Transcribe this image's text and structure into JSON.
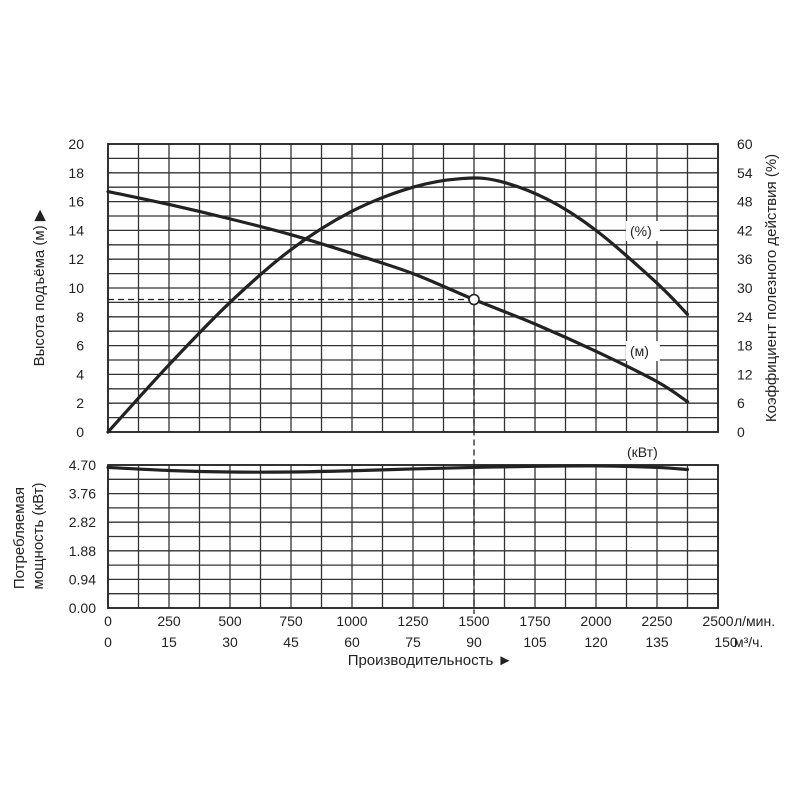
{
  "chart_data": [
    {
      "type": "line",
      "y_left_label": "Высота подъёма (м) ▶",
      "y_right_label": "Коэффициент полезного действия (%)",
      "y_left_ticks": [
        "0",
        "2",
        "4",
        "6",
        "8",
        "10",
        "12",
        "14",
        "16",
        "18",
        "20"
      ],
      "y_right_ticks": [
        "0",
        "6",
        "12",
        "18",
        "24",
        "30",
        "36",
        "42",
        "48",
        "54",
        "60"
      ],
      "y_left_lim": [
        0,
        20
      ],
      "y_right_lim": [
        0,
        60
      ],
      "series": [
        {
          "name": "(м)",
          "axis": "left",
          "x": [
            0,
            250,
            500,
            750,
            1000,
            1250,
            1500,
            1750,
            2000,
            2250,
            2375
          ],
          "y": [
            16.7,
            15.8,
            14.8,
            13.7,
            12.4,
            11.0,
            9.2,
            7.5,
            5.6,
            3.5,
            2.1
          ]
        },
        {
          "name": "(%)",
          "axis": "right",
          "x": [
            0,
            250,
            500,
            750,
            1000,
            1250,
            1450,
            1600,
            1800,
            2000,
            2250,
            2375
          ],
          "y": [
            0,
            14,
            27,
            38,
            46,
            51,
            52.8,
            52.3,
            48.5,
            42,
            31,
            24.5
          ]
        }
      ],
      "operating_point": {
        "x": 1500,
        "y": 9.2
      }
    },
    {
      "type": "line",
      "y_label": "Потребляемая мощность (кВт)",
      "y_ticks": [
        "0.00",
        "0.94",
        "1.88",
        "2.82",
        "3.76",
        "4.70"
      ],
      "y_lim": [
        0,
        4.7
      ],
      "series": [
        {
          "name": "(кВт)",
          "x": [
            0,
            250,
            500,
            750,
            1000,
            1250,
            1500,
            1750,
            2000,
            2250,
            2375
          ],
          "y": [
            4.62,
            4.52,
            4.47,
            4.47,
            4.51,
            4.57,
            4.62,
            4.66,
            4.67,
            4.62,
            4.55
          ]
        }
      ]
    }
  ],
  "x_axis": {
    "ticks_lpm": [
      "0",
      "250",
      "500",
      "750",
      "1000",
      "1250",
      "1500",
      "1750",
      "2000",
      "2250",
      "2500"
    ],
    "unit_lpm": "л/мин.",
    "ticks_m3h": [
      "0",
      "15",
      "30",
      "45",
      "60",
      "75",
      "90",
      "105",
      "120",
      "135",
      "150"
    ],
    "unit_m3h": "м³/ч.",
    "title": "Производительность ►",
    "xlim": [
      0,
      2500
    ]
  }
}
